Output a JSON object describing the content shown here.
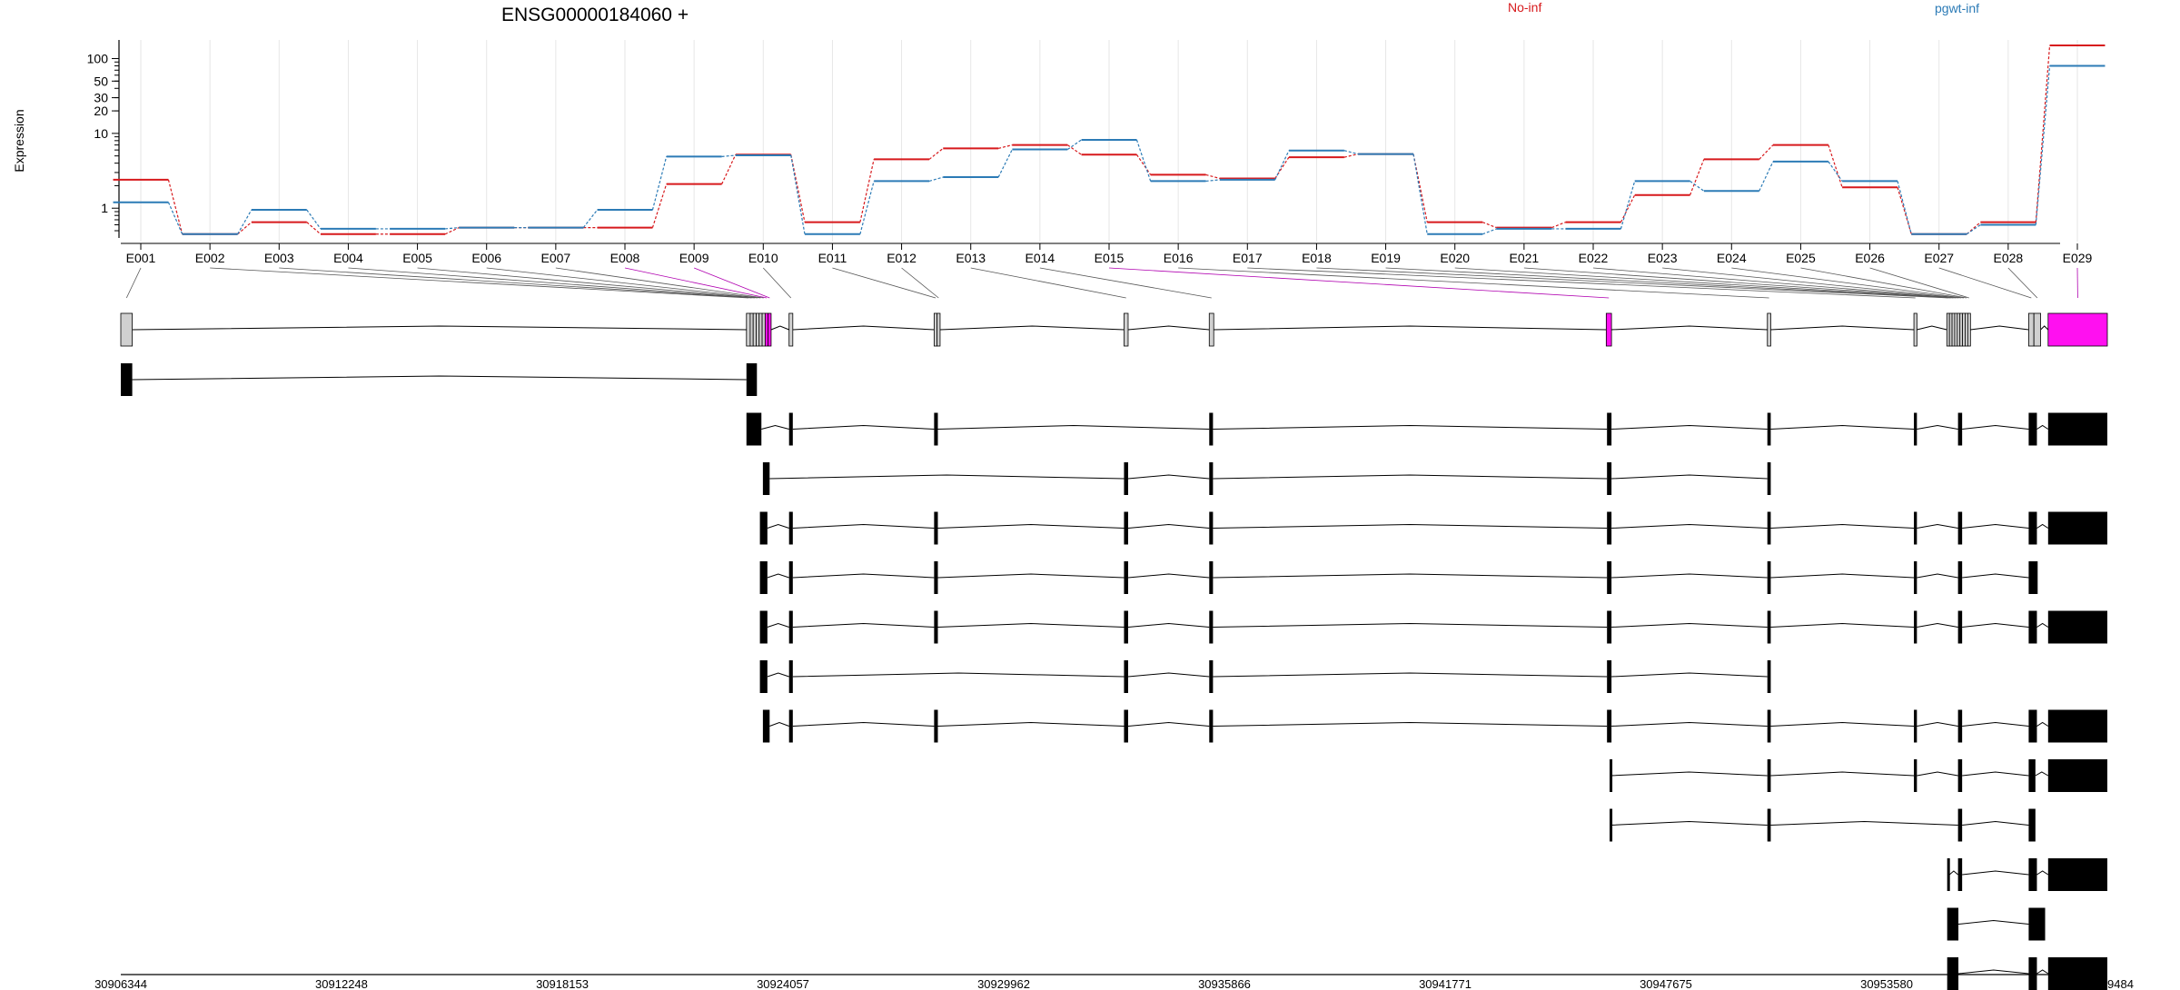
{
  "chart_data": {
    "type": "line",
    "title": "ENSG00000184060 +",
    "ylabel": "Expression",
    "yscale": "log",
    "ylim": [
      0.4,
      150
    ],
    "yticks": [
      {
        "v": 1,
        "label": "1"
      },
      {
        "v": 10,
        "label": "10"
      },
      {
        "v": 20,
        "label": "20"
      },
      {
        "v": 30,
        "label": "30"
      },
      {
        "v": 50,
        "label": "50"
      },
      {
        "v": 100,
        "label": "100"
      }
    ],
    "grid": true,
    "legend": "top-right",
    "categories": [
      "E001",
      "E002",
      "E003",
      "E004",
      "E005",
      "E006",
      "E007",
      "E008",
      "E009",
      "E010",
      "E011",
      "E012",
      "E013",
      "E014",
      "E015",
      "E016",
      "E017",
      "E018",
      "E019",
      "E020",
      "E021",
      "E022",
      "E023",
      "E024",
      "E025",
      "E026",
      "E027",
      "E028",
      "E029"
    ],
    "series": [
      {
        "name": "No-inf",
        "color": "#d7191c",
        "values": [
          2.4,
          0.45,
          0.65,
          0.45,
          0.45,
          0.55,
          0.55,
          0.55,
          2.1,
          5.2,
          0.65,
          4.5,
          6.3,
          7.0,
          5.2,
          2.8,
          2.5,
          4.8,
          5.3,
          0.65,
          0.55,
          0.65,
          1.5,
          4.5,
          7.0,
          1.9,
          0.45,
          0.65,
          150
        ]
      },
      {
        "name": "pgwt-inf",
        "color": "#2c7bb6",
        "values": [
          1.2,
          0.45,
          0.95,
          0.53,
          0.53,
          0.55,
          0.55,
          0.95,
          4.9,
          5.1,
          0.45,
          2.3,
          2.6,
          6.1,
          8.2,
          2.3,
          2.4,
          5.9,
          5.3,
          0.45,
          0.53,
          0.53,
          2.3,
          1.7,
          4.2,
          2.3,
          0.45,
          0.6,
          80
        ]
      }
    ],
    "gene_model": {
      "exons": [
        {
          "id": "E001",
          "start": 30906344,
          "end": 30906650,
          "hi": false
        },
        {
          "id": "E002",
          "start": 30923080,
          "end": 30923180,
          "hi": false
        },
        {
          "id": "E003",
          "start": 30923180,
          "end": 30923260,
          "hi": false
        },
        {
          "id": "E004",
          "start": 30923260,
          "end": 30923340,
          "hi": false
        },
        {
          "id": "E005",
          "start": 30923340,
          "end": 30923420,
          "hi": false
        },
        {
          "id": "E006",
          "start": 30923420,
          "end": 30923500,
          "hi": false
        },
        {
          "id": "E007",
          "start": 30923500,
          "end": 30923580,
          "hi": false
        },
        {
          "id": "E008",
          "start": 30923580,
          "end": 30923660,
          "hi": true
        },
        {
          "id": "E009",
          "start": 30923660,
          "end": 30923740,
          "hi": true
        },
        {
          "id": "E010",
          "start": 30924220,
          "end": 30924320,
          "hi": false
        },
        {
          "id": "E011",
          "start": 30928100,
          "end": 30928180,
          "hi": false
        },
        {
          "id": "E012",
          "start": 30928180,
          "end": 30928260,
          "hi": false
        },
        {
          "id": "E013",
          "start": 30933180,
          "end": 30933290,
          "hi": false
        },
        {
          "id": "E014",
          "start": 30935460,
          "end": 30935580,
          "hi": false
        },
        {
          "id": "E015",
          "start": 30946080,
          "end": 30946220,
          "hi": true
        },
        {
          "id": "E016",
          "start": 30950390,
          "end": 30950480,
          "hi": false
        },
        {
          "id": "E017",
          "start": 30954310,
          "end": 30954390,
          "hi": false
        },
        {
          "id": "E018",
          "start": 30955190,
          "end": 30955260,
          "hi": false
        },
        {
          "id": "E019",
          "start": 30955260,
          "end": 30955330,
          "hi": false
        },
        {
          "id": "E020",
          "start": 30955330,
          "end": 30955400,
          "hi": false
        },
        {
          "id": "E021",
          "start": 30955400,
          "end": 30955470,
          "hi": false
        },
        {
          "id": "E022",
          "start": 30955470,
          "end": 30955540,
          "hi": false
        },
        {
          "id": "E023",
          "start": 30955540,
          "end": 30955610,
          "hi": false
        },
        {
          "id": "E024",
          "start": 30955610,
          "end": 30955680,
          "hi": false
        },
        {
          "id": "E025",
          "start": 30955680,
          "end": 30955750,
          "hi": false
        },
        {
          "id": "E026",
          "start": 30955750,
          "end": 30955820,
          "hi": false
        },
        {
          "id": "E027",
          "start": 30957380,
          "end": 30957520,
          "hi": false
        },
        {
          "id": "E028",
          "start": 30957520,
          "end": 30957700,
          "hi": false
        },
        {
          "id": "E029",
          "start": 30957900,
          "end": 30959484,
          "hi": true
        }
      ],
      "transcripts": [
        [
          [
            30906344,
            30906650
          ],
          [
            30923080,
            30923360
          ]
        ],
        [
          [
            30923080,
            30923480
          ],
          [
            30924220,
            30924320
          ],
          [
            30928100,
            30928200
          ],
          [
            30935460,
            30935560
          ],
          [
            30946100,
            30946220
          ],
          [
            30950390,
            30950480
          ],
          [
            30954310,
            30954390
          ],
          [
            30955490,
            30955600
          ],
          [
            30957380,
            30957600
          ],
          [
            30957900,
            30959484
          ]
        ],
        [
          [
            30923520,
            30923700
          ],
          [
            30933180,
            30933290
          ],
          [
            30935460,
            30935560
          ],
          [
            30946100,
            30946220
          ],
          [
            30950390,
            30950480
          ]
        ],
        [
          [
            30923440,
            30923640
          ],
          [
            30924220,
            30924320
          ],
          [
            30928100,
            30928200
          ],
          [
            30933180,
            30933290
          ],
          [
            30935460,
            30935560
          ],
          [
            30946100,
            30946220
          ],
          [
            30950390,
            30950480
          ],
          [
            30954310,
            30954390
          ],
          [
            30955490,
            30955600
          ],
          [
            30957380,
            30957600
          ],
          [
            30957900,
            30959484
          ]
        ],
        [
          [
            30923440,
            30923640
          ],
          [
            30924220,
            30924320
          ],
          [
            30928100,
            30928200
          ],
          [
            30933180,
            30933290
          ],
          [
            30935460,
            30935560
          ],
          [
            30946100,
            30946220
          ],
          [
            30950390,
            30950480
          ],
          [
            30954310,
            30954390
          ],
          [
            30955490,
            30955600
          ],
          [
            30957380,
            30957620
          ]
        ],
        [
          [
            30923440,
            30923640
          ],
          [
            30924220,
            30924320
          ],
          [
            30928100,
            30928200
          ],
          [
            30933180,
            30933290
          ],
          [
            30935460,
            30935560
          ],
          [
            30946100,
            30946220
          ],
          [
            30950390,
            30950480
          ],
          [
            30954310,
            30954390
          ],
          [
            30955490,
            30955600
          ],
          [
            30957380,
            30957600
          ],
          [
            30957900,
            30959484
          ]
        ],
        [
          [
            30923440,
            30923640
          ],
          [
            30924220,
            30924320
          ],
          [
            30933180,
            30933290
          ],
          [
            30935460,
            30935560
          ],
          [
            30946100,
            30946220
          ],
          [
            30950390,
            30950480
          ]
        ],
        [
          [
            30923520,
            30923700
          ],
          [
            30924220,
            30924320
          ],
          [
            30928100,
            30928200
          ],
          [
            30933180,
            30933290
          ],
          [
            30935460,
            30935560
          ],
          [
            30946100,
            30946220
          ],
          [
            30950390,
            30950480
          ],
          [
            30954310,
            30954390
          ],
          [
            30955490,
            30955600
          ],
          [
            30957380,
            30957600
          ],
          [
            30957900,
            30959484
          ]
        ],
        [
          [
            30946170,
            30946200
          ],
          [
            30950390,
            30950480
          ],
          [
            30954310,
            30954390
          ],
          [
            30955490,
            30955600
          ],
          [
            30957380,
            30957560
          ],
          [
            30957900,
            30959484
          ]
        ],
        [
          [
            30946170,
            30946200
          ],
          [
            30950390,
            30950480
          ],
          [
            30955490,
            30955600
          ],
          [
            30957380,
            30957560
          ]
        ],
        [
          [
            30955200,
            30955260
          ],
          [
            30955490,
            30955600
          ],
          [
            30957380,
            30957600
          ],
          [
            30957900,
            30959484
          ]
        ],
        [
          [
            30955200,
            30955500
          ],
          [
            30957380,
            30957820
          ]
        ],
        [
          [
            30955200,
            30955500
          ],
          [
            30957380,
            30957600
          ],
          [
            30957900,
            30959484
          ]
        ]
      ]
    },
    "coord_ticks": [
      30906344,
      30912248,
      30918153,
      30924057,
      30929962,
      30935866,
      30941771,
      30947675,
      30953580,
      30959484
    ]
  }
}
